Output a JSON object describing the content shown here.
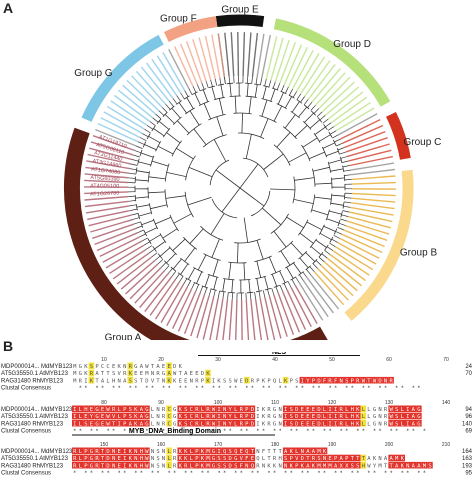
{
  "panel_a": {
    "label": "A",
    "groups": [
      {
        "name": "Group A",
        "color": "#5e1f14"
      },
      {
        "name": "Group B",
        "color": "#fbd98c"
      },
      {
        "name": "Group C",
        "color": "#d2321e"
      },
      {
        "name": "Group D",
        "color": "#b6e07a"
      },
      {
        "name": "Group E",
        "color": "#111111"
      },
      {
        "name": "Group F",
        "color": "#f3a183"
      },
      {
        "name": "Group G",
        "color": "#7ec6e6"
      }
    ],
    "visible_leaf_labels": [
      "AT1G18710",
      "AT5G08110",
      "AT3G11440",
      "AT3G14860",
      "AT1G74080",
      "AT5G60390",
      "AT4G05100",
      "AT1G26780"
    ]
  },
  "panel_b": {
    "label": "B",
    "domains": [
      {
        "name": "NLS"
      },
      {
        "name": "MYB_DNA_Binding Domain"
      }
    ],
    "blocks": [
      {
        "ruler": [
          "10",
          "20",
          "30",
          "40",
          "50",
          "60",
          "70"
        ],
        "rows": [
          {
            "name": "MDP000014... MdMYB123",
            "seq": "MGKSPCCEKNRGAWTAEEDK",
            "end": "24"
          },
          {
            "name": "AT5G35550.1 AtMYB123",
            "seq": "MGKRATTSVRKEEMNRGAWTAEEDK",
            "end": "70"
          },
          {
            "name": "RAG31480 RhMYB123",
            "seq": "MRIKTALHNASSTDVTNKKEENRPKIKSSWEDRPKPQLKPSIYPDFRFNSPRWTWDNR",
            "end": ""
          },
          {
            "name": "Clustal Consensus",
            "seq": "",
            "end": ""
          }
        ]
      },
      {
        "ruler": [
          "80",
          "90",
          "100",
          "110",
          "120",
          "130",
          "140"
        ],
        "rows": [
          {
            "name": "MDP000014... MdMYB123",
            "seq": "ILHEGEWRLPSKAGLNRCGKSCRLRWINYLRPDIKRGNISDEEEDLIIRLHKLLGNRWSLIAG",
            "end": "94"
          },
          {
            "name": "AT5G35550.1 AtMYB123",
            "seq": "ILEYGEWVLPSKAGLNRCGKSCRLRWINYLRPDIKRGNISDEEEDLIIRLHKLLGNRWSLIAG",
            "end": "96"
          },
          {
            "name": "RAG31480 RhMYB123",
            "seq": "ILSEGEWTIPAKAGLNRCGKSCRLRWINYLRPDIKRGNISDEEEDLIIRLHKLLGNRWSLIAG",
            "end": "140"
          },
          {
            "name": "Clustal Consensus",
            "seq": "",
            "end": "69"
          }
        ]
      },
      {
        "ruler": [
          "150",
          "160",
          "170",
          "180",
          "190",
          "200",
          "210"
        ],
        "rows": [
          {
            "name": "MDP000014... MdMYB123",
            "seq": "RLPGRTDNEIKNHWNSNLRKKLPKMGIQSQEQTNFTTTAKLNAAMK",
            "end": "164"
          },
          {
            "name": "AT5G35550.1 AtMYB123",
            "seq": "RLPGRTDNEIKNHWNSNLRKKLPKMGSSDGVFEQLTRHSPVDTRSNEPAPTTTAKNAAMK",
            "end": "163"
          },
          {
            "name": "RAG31480 RhMYB123",
            "seq": "RLPGRTDNEIKNHWNSNLRKRLPKMGSSDSFNQRNKKNNKPKAKMMMAXXSSHWYMTTAKNAAMS",
            "end": "193"
          },
          {
            "name": "Clustal Consensus",
            "seq": "",
            "end": "95"
          }
        ]
      }
    ]
  }
}
